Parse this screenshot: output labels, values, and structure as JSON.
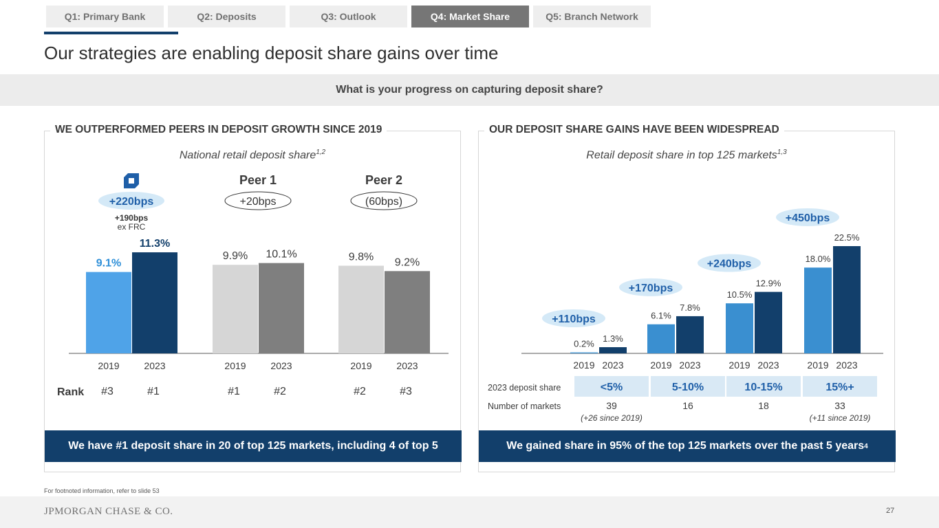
{
  "tabs": [
    {
      "label": "Q1: Primary Bank",
      "active": false
    },
    {
      "label": "Q2: Deposits",
      "active": false
    },
    {
      "label": "Q3: Outlook",
      "active": false
    },
    {
      "label": "Q4: Market Share",
      "active": true
    },
    {
      "label": "Q5: Branch Network",
      "active": false
    }
  ],
  "page_title": "Our strategies are enabling deposit share gains over time",
  "question": "What is your progress on capturing deposit share?",
  "left_panel": {
    "heading": "WE OUTPERFORMED PEERS IN DEPOSIT GROWTH SINCE 2019",
    "subtitle": "National retail deposit share",
    "subtitle_sup": "1,2",
    "callout": "We have #1 deposit share in 20 of top 125 markets, including 4 of top 5"
  },
  "right_panel": {
    "heading": "OUR DEPOSIT SHARE GAINS HAVE BEEN WIDESPREAD",
    "subtitle": "Retail deposit share in top 125 markets",
    "subtitle_sup": "1,3",
    "callout": "We gained share in 95% of the top 125 markets over the past 5 years",
    "callout_sup": "4"
  },
  "chart_data": [
    {
      "type": "bar",
      "title": "National retail deposit share",
      "groups": [
        {
          "name": "",
          "icon": "octagon-logo-icon",
          "change": "+220bps",
          "change_note": "+190bps",
          "change_note2": "ex FRC",
          "years": [
            "2019",
            "2023"
          ],
          "values": [
            9.1,
            11.3
          ],
          "labels": [
            "9.1%",
            "11.3%"
          ],
          "ranks": [
            "#3",
            "#1"
          ],
          "colors": [
            "#4fa3e8",
            "#123f6b"
          ]
        },
        {
          "name": "Peer 1",
          "change": "+20bps",
          "years": [
            "2019",
            "2023"
          ],
          "values": [
            9.9,
            10.1
          ],
          "labels": [
            "9.9%",
            "10.1%"
          ],
          "ranks": [
            "#1",
            "#2"
          ],
          "colors": [
            "#d6d6d6",
            "#7f7f7f"
          ]
        },
        {
          "name": "Peer 2",
          "change": "(60bps)",
          "years": [
            "2019",
            "2023"
          ],
          "values": [
            9.8,
            9.2
          ],
          "labels": [
            "9.8%",
            "9.2%"
          ],
          "ranks": [
            "#2",
            "#3"
          ],
          "colors": [
            "#d6d6d6",
            "#7f7f7f"
          ]
        }
      ],
      "rank_label": "Rank",
      "ylim": [
        0,
        11.3
      ]
    },
    {
      "type": "bar",
      "title": "Retail deposit share in top 125 markets",
      "groups": [
        {
          "change": "+110bps",
          "years": [
            "2019",
            "2023"
          ],
          "values": [
            0.2,
            1.3
          ],
          "labels": [
            "0.2%",
            "1.3%"
          ],
          "share_bucket": "<5%",
          "markets": "39",
          "markets_note": "(+26 since 2019)"
        },
        {
          "change": "+170bps",
          "years": [
            "2019",
            "2023"
          ],
          "values": [
            6.1,
            7.8
          ],
          "labels": [
            "6.1%",
            "7.8%"
          ],
          "share_bucket": "5-10%",
          "markets": "16",
          "markets_note": ""
        },
        {
          "change": "+240bps",
          "years": [
            "2019",
            "2023"
          ],
          "values": [
            10.5,
            12.9
          ],
          "labels": [
            "10.5%",
            "12.9%"
          ],
          "share_bucket": "10-15%",
          "markets": "18",
          "markets_note": ""
        },
        {
          "change": "+450bps",
          "years": [
            "2019",
            "2023"
          ],
          "values": [
            18.0,
            22.5
          ],
          "labels": [
            "18.0%",
            "22.5%"
          ],
          "share_bucket": "15%+",
          "markets": "33",
          "markets_note": "(+11 since 2019)"
        }
      ],
      "row_labels": [
        "2023 deposit share",
        "Number of markets"
      ],
      "colors": [
        "#3a8fd0",
        "#123f6b"
      ],
      "ylim": [
        0,
        22.5
      ]
    }
  ],
  "footnote": "For footnoted information, refer to slide 53",
  "logo": "JPMORGAN CHASE & CO.",
  "page_number": "27"
}
